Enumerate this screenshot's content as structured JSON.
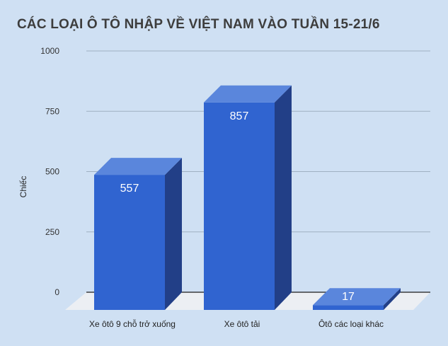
{
  "chart_data": {
    "type": "bar",
    "title": "CÁC LOẠI Ô TÔ NHẬP VỀ VIỆT NAM VÀO TUẦN 15-21/6",
    "xlabel": "",
    "ylabel": "Chiếc",
    "categories": [
      "Xe ôtô 9 chỗ trở xuống",
      "Xe ôtô tải",
      "Ôtô các loại khác"
    ],
    "values": [
      557,
      857,
      17
    ],
    "data_labels": [
      "557",
      "857",
      "17"
    ],
    "ylim": [
      0,
      1000
    ],
    "yticks": [
      0,
      250,
      500,
      750,
      1000
    ],
    "ytick_labels": [
      "0",
      "250",
      "500",
      "750",
      "1000"
    ],
    "grid": true,
    "legend": "none",
    "bar_style": "3d",
    "colors": {
      "background": "#cfe0f3",
      "bar_front": "#3064d0",
      "bar_top": "#5a86dc",
      "bar_side": "#223f87",
      "floor": "#eceff3",
      "gridline": "#9fb0c2",
      "label_text": "#ffffff"
    }
  }
}
